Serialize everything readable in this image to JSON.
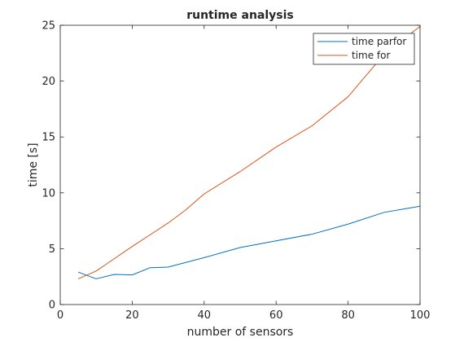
{
  "chart_data": {
    "type": "line",
    "title": "runtime analysis",
    "xlabel": "number of sensors",
    "ylabel": "time [s]",
    "xlim": [
      0,
      100
    ],
    "ylim": [
      0,
      25
    ],
    "xticks": [
      0,
      20,
      40,
      60,
      80,
      100
    ],
    "yticks": [
      0,
      5,
      10,
      15,
      20,
      25
    ],
    "grid": false,
    "legend_position": "top-right",
    "series": [
      {
        "name": "time parfor",
        "color": "#0072BD",
        "x": [
          5,
          10,
          15,
          20,
          25,
          30,
          40,
          50,
          60,
          70,
          80,
          90,
          100
        ],
        "y": [
          2.9,
          2.3,
          2.7,
          2.65,
          3.3,
          3.35,
          4.2,
          5.1,
          5.7,
          6.3,
          7.2,
          8.25,
          8.8
        ]
      },
      {
        "name": "time for",
        "color": "#D95319",
        "x": [
          5,
          10,
          15,
          20,
          25,
          30,
          35,
          40,
          50,
          60,
          70,
          80,
          90,
          100
        ],
        "y": [
          2.3,
          3.0,
          4.1,
          5.2,
          6.25,
          7.3,
          8.5,
          9.9,
          11.9,
          14.1,
          16.0,
          18.6,
          22.4,
          24.9
        ]
      }
    ]
  }
}
